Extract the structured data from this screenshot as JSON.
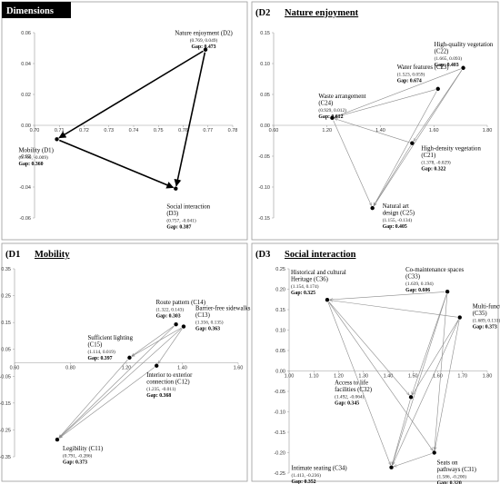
{
  "chart_data": [
    {
      "type": "scatter",
      "title": "Dimensions",
      "xlim": [
        0.7,
        0.78
      ],
      "ylim": [
        -0.06,
        0.06
      ],
      "xticks": [
        "0.70",
        "0.71",
        "0.72",
        "0.73",
        "0.74",
        "0.75",
        "0.76",
        "0.77",
        "0.78"
      ],
      "yticks": [
        "0.06",
        "0.04",
        "0.02",
        "0.00",
        "-0.02",
        "-0.04",
        "-0.06"
      ],
      "points": [
        {
          "name": "Nature enjoyment (D2)",
          "x": 0.769,
          "y": 0.049,
          "coords": "(0.769, 0.049)",
          "gap_label": "Gap:",
          "gap": "0.473"
        },
        {
          "name": "Mobility (D1)",
          "x": 0.709,
          "y": -0.009,
          "coords": "(0.709, -0.009)",
          "gap_label": "Gap:",
          "gap": "0.360"
        },
        {
          "name": "Social interaction (D3)",
          "x": 0.757,
          "y": -0.041,
          "coords": "(0.757, -0.041)",
          "gap_label": "Gap:",
          "gap": "0.387"
        }
      ],
      "edges": [
        [
          0,
          1
        ],
        [
          0,
          2
        ],
        [
          1,
          2
        ]
      ],
      "arrow_style": "bold"
    },
    {
      "type": "scatter",
      "title_code": "(D2",
      "title": "Nature enjoyment",
      "xlim": [
        0.6,
        1.8
      ],
      "ylim": [
        -0.15,
        0.15
      ],
      "xticks": [
        "0.60",
        "1.20",
        "1.40",
        "1.60",
        "1.80"
      ],
      "yticks": [
        "0.15",
        "0.10",
        "0.05",
        "0.00",
        "-0.05",
        "-0.10",
        "-0.15"
      ],
      "points": [
        {
          "name": "High-quality vegetation (C22)",
          "x": 1.665,
          "y": 0.093,
          "coords": "(1.665, 0.093)",
          "gap_label": "Gap:",
          "gap": "0.403"
        },
        {
          "name": "Water features (C23)",
          "x": 1.523,
          "y": 0.059,
          "coords": "(1.523, 0.059)",
          "gap_label": "Gap:",
          "gap": "0.674"
        },
        {
          "name": "Waste arrangement (C24)",
          "x": 0.929,
          "y": 0.012,
          "coords": "(0.929, 0.012)",
          "gap_label": "Gap:",
          "gap": "0.612"
        },
        {
          "name": "High-density vegetation (C21)",
          "x": 1.378,
          "y": -0.029,
          "coords": "(1.378, -0.029)",
          "gap_label": "Gap:",
          "gap": "0.322"
        },
        {
          "name": "Natural art design (C25)",
          "x": 1.155,
          "y": -0.134,
          "coords": "(1.155, -0.134)",
          "gap_label": "Gap:",
          "gap": "0.405"
        }
      ],
      "edges": [
        [
          0,
          2
        ],
        [
          0,
          3
        ],
        [
          0,
          4
        ],
        [
          1,
          2
        ],
        [
          1,
          4
        ],
        [
          3,
          2
        ],
        [
          3,
          4
        ],
        [
          2,
          4
        ]
      ],
      "arrow_style": "thin"
    },
    {
      "type": "scatter",
      "title_code": "(D1",
      "title": "Mobility",
      "xlim": [
        0.6,
        1.6
      ],
      "ylim": [
        -0.35,
        0.35
      ],
      "xticks": [
        "0.60",
        "0.80",
        "1.20",
        "1.40",
        "1.60"
      ],
      "yticks": [
        "0.35",
        "0.25",
        "0.15",
        "0.05",
        "-0.05",
        "-0.15",
        "-0.25",
        "-0.35"
      ],
      "points": [
        {
          "name": "Route pattern (C14)",
          "x": 1.322,
          "y": 0.143,
          "coords": "(1.322, 0.143)",
          "gap_label": "Gap:",
          "gap": "0.303"
        },
        {
          "name": "Barrier-free sidewalks (C13)",
          "x": 1.356,
          "y": 0.135,
          "coords": "(1.356, 0.135)",
          "gap_label": "Gap:",
          "gap": "0.363"
        },
        {
          "name": "Sufficient lighting (C15)",
          "x": 1.114,
          "y": 0.019,
          "coords": "(1.114, 0.019)",
          "gap_label": "Gap:",
          "gap": "0.397"
        },
        {
          "name": "Interior to exterior connection (C12)",
          "x": 1.235,
          "y": -0.011,
          "coords": "(1.235, -0.011)",
          "gap_label": "Gap:",
          "gap": "0.368"
        },
        {
          "name": "Legibility (C11)",
          "x": 0.791,
          "y": -0.286,
          "coords": "(0.791, -0.286)",
          "gap_label": "Gap:",
          "gap": "0.373"
        }
      ],
      "edges": [
        [
          0,
          4
        ],
        [
          1,
          4
        ],
        [
          2,
          4
        ],
        [
          3,
          4
        ],
        [
          0,
          2
        ],
        [
          1,
          3
        ],
        [
          1,
          2
        ]
      ],
      "arrow_style": "thin"
    },
    {
      "type": "scatter",
      "title_code": "(D3",
      "title": "Social interaction",
      "xlim": [
        1.0,
        1.8
      ],
      "ylim": [
        -0.25,
        0.25
      ],
      "xticks": [
        "1.00",
        "1.10",
        "1.20",
        "1.30",
        "1.40",
        "1.50",
        "1.60",
        "1.70",
        "1.80"
      ],
      "yticks": [
        "0.25",
        "0.20",
        "0.15",
        "0.10",
        "0.05",
        "0.00",
        "-0.05",
        "-0.10",
        "-0.15",
        "-0.20",
        "-0.25"
      ],
      "points": [
        {
          "name": "Historical and cultural Heritage (C36)",
          "x": 1.154,
          "y": 0.174,
          "coords": "(1.154, 0.174)",
          "gap_label": "Gap:",
          "gap": "0.325"
        },
        {
          "name": "Co-maintenance spaces (C33)",
          "x": 1.639,
          "y": 0.194,
          "coords": "(1.639, 0.194)",
          "gap_label": "Gap:",
          "gap": "0.606"
        },
        {
          "name": "Multi-functional spaces (C35)",
          "x": 1.689,
          "y": 0.131,
          "coords": "(1.689, 0.131)",
          "gap_label": "Gap:",
          "gap": "0.373"
        },
        {
          "name": "Access to life facilities (C32)",
          "x": 1.492,
          "y": -0.064,
          "coords": "(1.492, -0.064)",
          "gap_label": "Gap:",
          "gap": "0.345"
        },
        {
          "name": "Intimate seating (C34)",
          "x": 1.413,
          "y": -0.236,
          "coords": "(1.413, -0.236)",
          "gap_label": "Gap:",
          "gap": "0.352"
        },
        {
          "name": "Seats on pathways (C31)",
          "x": 1.586,
          "y": -0.2,
          "coords": "(1.586, -0.200)",
          "gap_label": "Gap:",
          "gap": "0.320"
        }
      ],
      "edges": [
        [
          1,
          0
        ],
        [
          2,
          0
        ],
        [
          0,
          3
        ],
        [
          0,
          4
        ],
        [
          0,
          5
        ],
        [
          1,
          3
        ],
        [
          1,
          4
        ],
        [
          1,
          5
        ],
        [
          2,
          3
        ],
        [
          2,
          4
        ],
        [
          2,
          5
        ],
        [
          3,
          4
        ],
        [
          5,
          4
        ]
      ],
      "arrow_style": "thin"
    }
  ]
}
